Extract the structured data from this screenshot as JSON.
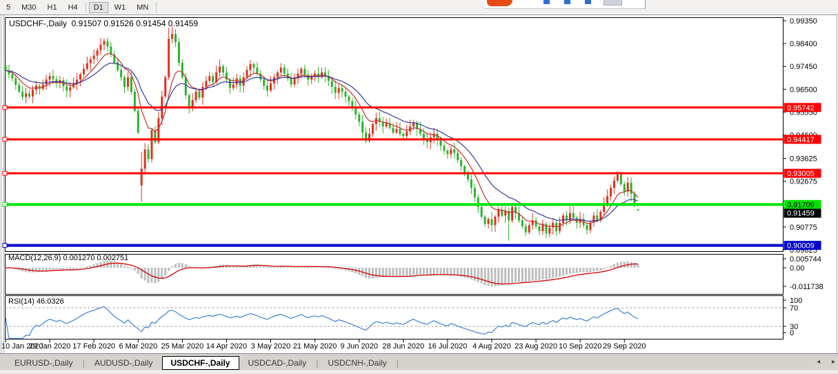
{
  "toolbar": {
    "timeframes": [
      {
        "label": "5",
        "active": false
      },
      {
        "label": "M30",
        "active": false
      },
      {
        "label": "H1",
        "active": false
      },
      {
        "label": "H4",
        "active": false
      },
      {
        "label": "D1",
        "active": true
      },
      {
        "label": "W1",
        "active": false
      },
      {
        "label": "MN",
        "active": false
      }
    ]
  },
  "chart": {
    "title_symbol": "USDCHF-,Daily",
    "title_ohlc": "0.91507 0.91526 0.91454 0.91459",
    "price_axis_ticks": [
      "0.99350",
      "0.98400",
      "0.97450",
      "0.96500",
      "0.95550",
      "0.94600",
      "0.93625",
      "0.92675",
      "0.90775",
      "0.89825"
    ],
    "levels": [
      {
        "label": "0.95742",
        "price": 0.95742,
        "color": "#ff0000",
        "text_color": "#ffffff",
        "width": 3
      },
      {
        "label": "0.94417",
        "price": 0.94417,
        "color": "#ff0000",
        "text_color": "#ffffff",
        "width": 3
      },
      {
        "label": "0.93005",
        "price": 0.93005,
        "color": "#ff0000",
        "text_color": "#ffffff",
        "width": 3
      },
      {
        "label": "0.91709",
        "price": 0.91709,
        "color": "#00e400",
        "text_color": "#000000",
        "width": 4
      },
      {
        "label": "0.90009",
        "price": 0.90009,
        "color": "#0000cc",
        "text_color": "#ffffff",
        "width": 4
      }
    ],
    "current_price": {
      "label": "0.91459",
      "price": 0.91459,
      "bg": "#000000",
      "text_color": "#ffffff"
    }
  },
  "chart_data": {
    "type": "candlestick",
    "symbol": "USDCHF",
    "timeframe": "Daily",
    "up_color": "#e0301e",
    "down_color": "#2bb32b",
    "ma_fast_color": "#c62f2f",
    "ma_slow_color": "#37379b",
    "price_range_visible": [
      0.89825,
      0.9935
    ],
    "x_labels": [
      "10 Jan 2020",
      "29 Jan 2020",
      "17 Feb 2020",
      "6 Mar 2020",
      "25 Mar 2020",
      "14 Apr 2020",
      "3 May 2020",
      "21 May 2020",
      "9 Jun 2020",
      "28 Jun 2020",
      "16 Jul 2020",
      "4 Aug 2020",
      "23 Aug 2020",
      "10 Sep 2020",
      "29 Sep 2020"
    ],
    "x_label_bars": [
      0,
      13,
      26,
      39,
      52,
      65,
      78,
      91,
      104,
      117,
      130,
      143,
      156,
      169,
      182
    ],
    "closes": [
      0.9728,
      0.9712,
      0.9695,
      0.9668,
      0.964,
      0.9618,
      0.9632,
      0.962,
      0.9648,
      0.9665,
      0.9652,
      0.967,
      0.969,
      0.9705,
      0.9692,
      0.9675,
      0.9688,
      0.9662,
      0.9645,
      0.9658,
      0.9672,
      0.969,
      0.9712,
      0.9735,
      0.9758,
      0.9775,
      0.979,
      0.9812,
      0.9835,
      0.985,
      0.9828,
      0.9795,
      0.9762,
      0.973,
      0.97,
      0.966,
      0.97,
      0.964,
      0.956,
      0.947,
      0.932,
      0.94,
      0.936,
      0.948,
      0.943,
      0.953,
      0.962,
      0.97,
      0.986,
      0.988,
      0.9845,
      0.976,
      0.97,
      0.9625,
      0.9575,
      0.9605,
      0.964,
      0.9615,
      0.966,
      0.9685,
      0.9705,
      0.968,
      0.972,
      0.9745,
      0.972,
      0.969,
      0.9655,
      0.967,
      0.9695,
      0.9665,
      0.97,
      0.973,
      0.9755,
      0.974,
      0.9715,
      0.969,
      0.9665,
      0.9645,
      0.9675,
      0.97,
      0.972,
      0.974,
      0.9715,
      0.9695,
      0.967,
      0.9695,
      0.9715,
      0.9735,
      0.971,
      0.969,
      0.9705,
      0.9715,
      0.97,
      0.972,
      0.9705,
      0.9685,
      0.966,
      0.9635,
      0.9655,
      0.964,
      0.962,
      0.96,
      0.9575,
      0.9545,
      0.9515,
      0.947,
      0.9435,
      0.9465,
      0.9505,
      0.953,
      0.9515,
      0.9495,
      0.951,
      0.949,
      0.947,
      0.9485,
      0.9465,
      0.9455,
      0.9475,
      0.9495,
      0.951,
      0.9485,
      0.9465,
      0.9445,
      0.943,
      0.945,
      0.9465,
      0.944,
      0.9415,
      0.9395,
      0.938,
      0.94,
      0.9385,
      0.9355,
      0.933,
      0.9305,
      0.9275,
      0.924,
      0.92,
      0.916,
      0.912,
      0.909,
      0.911,
      0.9085,
      0.912,
      0.915,
      0.9125,
      0.9145,
      0.9105,
      0.916,
      0.9135,
      0.9105,
      0.908,
      0.9055,
      0.9085,
      0.9105,
      0.908,
      0.906,
      0.909,
      0.905,
      0.9075,
      0.9095,
      0.906,
      0.9095,
      0.9125,
      0.9105,
      0.9135,
      0.9115,
      0.9095,
      0.911,
      0.9085,
      0.9065,
      0.9095,
      0.9125,
      0.9105,
      0.914,
      0.9175,
      0.9205,
      0.924,
      0.927,
      0.9295,
      0.9255,
      0.9225,
      0.9262,
      0.9215,
      0.9176,
      0.91459
    ],
    "key_candles": {
      "40": {
        "open": 0.925,
        "close": 0.932,
        "high": 0.939,
        "low": 0.9182
      },
      "48": {
        "high": 0.9905
      },
      "50": {
        "high": 0.99
      },
      "54": {
        "low": 0.9549
      },
      "106": {
        "low": 0.9425
      },
      "148": {
        "low": 0.902
      },
      "153": {
        "low": 0.904
      },
      "159": {
        "low": 0.903
      },
      "180": {
        "high": 0.931
      },
      "186": {
        "open": 0.91507,
        "high": 0.91526,
        "low": 0.91454,
        "close": 0.91459
      }
    }
  },
  "macd": {
    "label": "MACD(12,26,9) 0.001270 0.002751",
    "params": [
      12,
      26,
      9
    ],
    "value": "0.001270",
    "signal_value": "0.002751",
    "axis_labels": [
      "0.005744",
      "0.00",
      "-0.011738"
    ],
    "histogram_color": "#bdbdbd",
    "signal_color": "#d40000"
  },
  "rsi": {
    "label": "RSI(14) 46.0326",
    "period": 14,
    "value": "46.0326",
    "axis_labels": [
      "100",
      "70",
      "30",
      "0"
    ],
    "overbought": 70,
    "oversold": 30,
    "line_color": "#3c82d2"
  },
  "tabs": [
    {
      "label": "EURUSD-,Daily",
      "active": false
    },
    {
      "label": "AUDUSD-,Daily",
      "active": false
    },
    {
      "label": "USDCHF-,Daily",
      "active": true
    },
    {
      "label": "USDCAD-,Daily",
      "active": false
    },
    {
      "label": "USDCNH-,Daily",
      "active": false
    }
  ],
  "tab_scroll": {
    "left": "◂",
    "right": "▸"
  }
}
